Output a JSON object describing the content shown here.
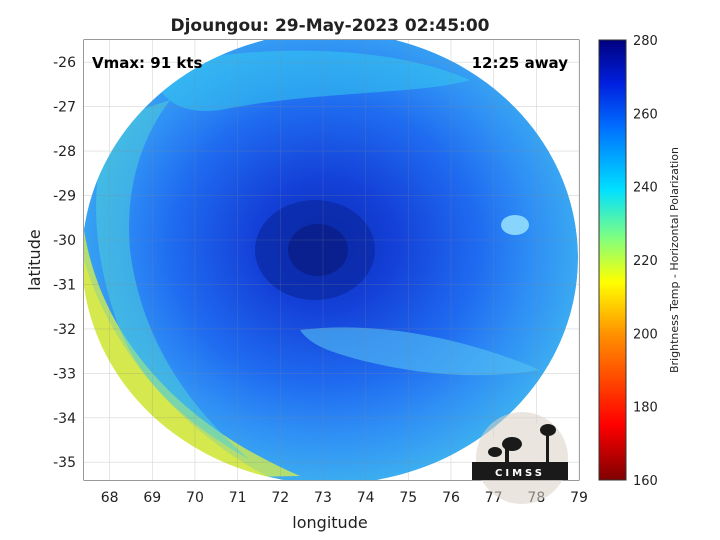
{
  "title": "Djoungou: 29-May-2023 02:45:00",
  "annotations": {
    "vmax": "Vmax: 91 kts",
    "distance": "12:25 away"
  },
  "axes": {
    "xlabel": "longitude",
    "ylabel": "latitude",
    "xlim": [
      67.4,
      79
    ],
    "ylim": [
      -35.4,
      -25.5
    ],
    "xticks": [
      "68",
      "69",
      "70",
      "71",
      "72",
      "73",
      "74",
      "75",
      "76",
      "77",
      "78",
      "79"
    ],
    "yticks": [
      "-26",
      "-27",
      "-28",
      "-29",
      "-30",
      "-31",
      "-32",
      "-33",
      "-34",
      "-35"
    ],
    "grid": true
  },
  "colorbar": {
    "label": "Brightness Temp - Horizontal Polarization",
    "range": [
      160,
      280
    ],
    "ticks": [
      "280",
      "260",
      "240",
      "220",
      "200",
      "180",
      "160"
    ]
  },
  "logo": {
    "text": "CIMSS"
  }
}
